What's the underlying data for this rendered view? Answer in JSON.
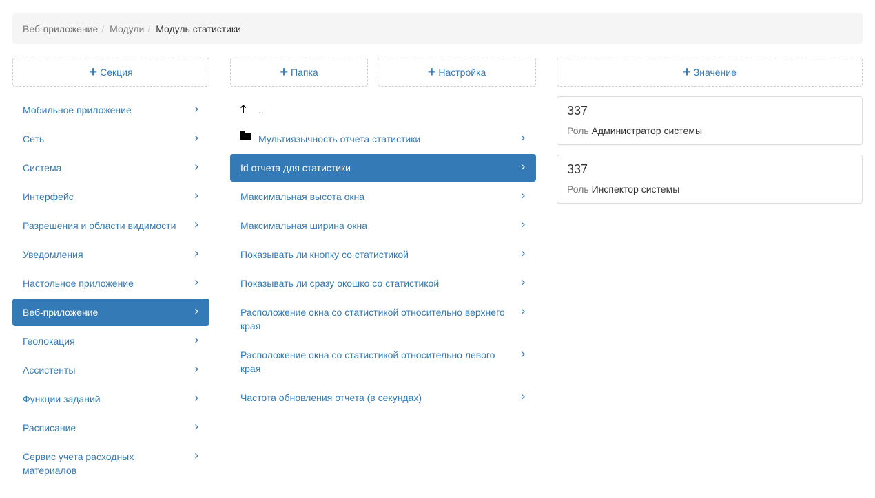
{
  "breadcrumb": {
    "items": [
      "Веб-приложение",
      "Модули"
    ],
    "current": "Модуль статистики",
    "separator": "/"
  },
  "left": {
    "add_label": "Секция",
    "items": [
      "Мобильное приложение",
      "Сеть",
      "Система",
      "Интерфейс",
      "Разрешения и области видимости",
      "Уведомления",
      "Настольное приложение",
      "Веб-приложение",
      "Геолокация",
      "Ассистенты",
      "Функции заданий",
      "Расписание",
      "Сервис учета расходных материалов"
    ],
    "active_index": 7
  },
  "middle": {
    "add_folder_label": "Папка",
    "add_setting_label": "Настройка",
    "up_label": "..",
    "folder": "Мультиязычность отчета статистики",
    "items": [
      "Id отчета для статистики",
      "Максимальная высота окна",
      "Максимальная ширина окна",
      "Показывать ли кнопку со статистикой",
      "Показывать ли сразу окошко со статистикой",
      "Расположение окна со статистикой относительно верхнего края",
      "Расположение окна со статистикой относительно левого края",
      "Частота обновления отчета (в секундах)"
    ],
    "active_index": 0
  },
  "right": {
    "add_label": "Значение",
    "role_label": "Роль",
    "values": [
      {
        "value": "337",
        "role": "Администратор системы"
      },
      {
        "value": "337",
        "role": "Инспектор системы"
      }
    ]
  },
  "icons": {
    "add": "plus-icon",
    "chevron": "chevron-right-icon",
    "up": "arrow-up-icon",
    "folder": "folder-icon"
  },
  "colors": {
    "accent": "#337ab7",
    "breadcrumb_bg": "#f5f5f5"
  }
}
